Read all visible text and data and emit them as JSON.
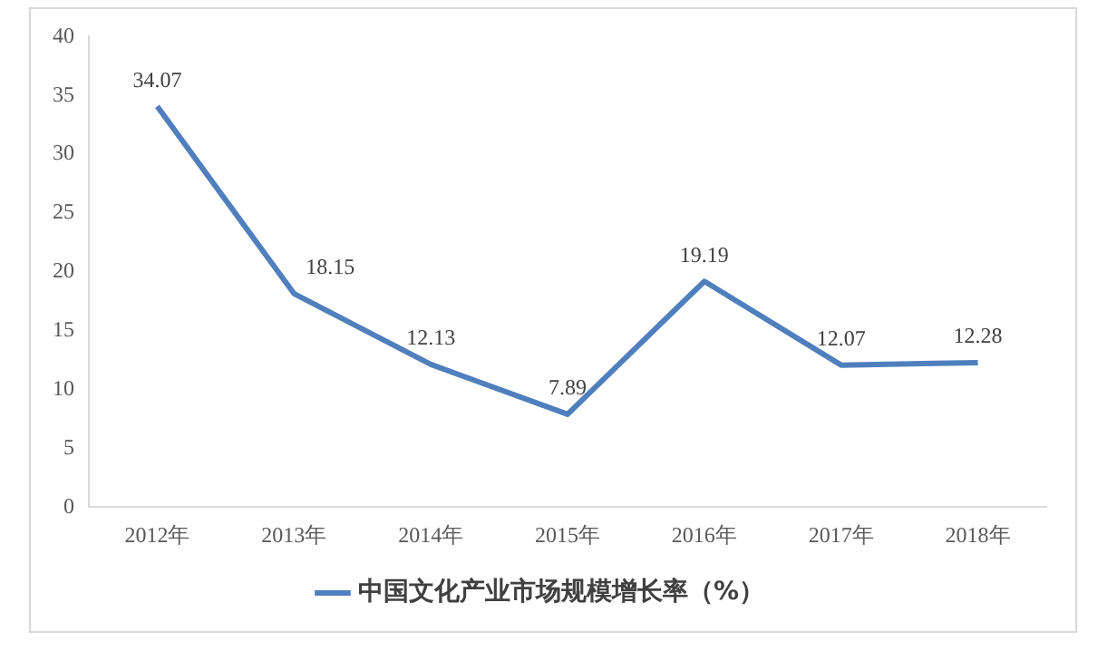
{
  "chart_data": {
    "type": "line",
    "categories": [
      "2012年",
      "2013年",
      "2014年",
      "2015年",
      "2016年",
      "2017年",
      "2018年"
    ],
    "series": [
      {
        "name": "中国文化产业市场规模增长率（%）",
        "color": "#4f7fbd",
        "values": [
          34.07,
          18.15,
          12.13,
          7.89,
          19.19,
          12.07,
          12.28
        ]
      }
    ],
    "ylim": [
      0,
      40
    ],
    "yticks": [
      0,
      5,
      10,
      15,
      20,
      25,
      30,
      35,
      40
    ],
    "grid": false,
    "legend": "bottom",
    "data_labels": true,
    "marker": "none",
    "line_style": "solid"
  }
}
